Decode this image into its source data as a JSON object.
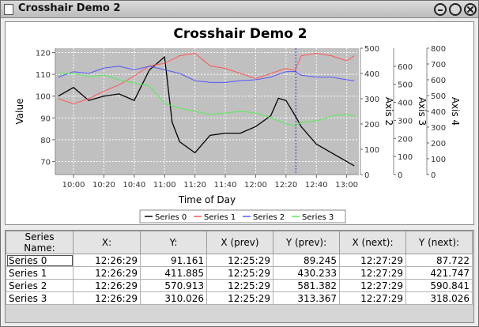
{
  "window": {
    "title": "Crosshair Demo 2"
  },
  "chart_data": {
    "type": "line",
    "title": "Crosshair Demo 2",
    "xlabel": "Time of Day",
    "ylabel": "Value",
    "x_ticks": [
      "10:00",
      "10:20",
      "10:40",
      "11:00",
      "11:20",
      "11:40",
      "12:00",
      "12:20",
      "12:40",
      "13:00"
    ],
    "x_start": "09:48",
    "x_end": "13:08",
    "crosshair_x": "12:26:29",
    "grid": true,
    "legend_position": "bottom",
    "axes": [
      {
        "name": "Value",
        "side": "left",
        "range": [
          64,
          122
        ],
        "ticks": [
          70,
          80,
          90,
          100,
          110,
          120
        ]
      },
      {
        "name": "Axis 2",
        "side": "right",
        "range": [
          0,
          500
        ],
        "ticks": [
          0,
          100,
          200,
          300,
          400,
          500
        ]
      },
      {
        "name": "Axis 3",
        "side": "right",
        "range": [
          0,
          700
        ],
        "ticks": [
          0,
          100,
          200,
          300,
          400,
          500,
          600
        ]
      },
      {
        "name": "Axis 4",
        "side": "right",
        "range": [
          0,
          800
        ],
        "ticks": [
          0,
          100,
          200,
          300,
          400,
          500,
          600,
          700,
          800
        ]
      }
    ],
    "series": [
      {
        "name": "Series 0",
        "axis": 0,
        "color": "#000000",
        "x": [
          "09:50",
          "10:00",
          "10:10",
          "10:20",
          "10:30",
          "10:40",
          "10:50",
          "11:00",
          "11:05",
          "11:10",
          "11:20",
          "11:30",
          "11:40",
          "11:50",
          "12:00",
          "12:10",
          "12:15",
          "12:20",
          "12:26",
          "12:30",
          "12:40",
          "12:50",
          "13:00",
          "13:05"
        ],
        "y": [
          100,
          104,
          98,
          100,
          101,
          98,
          112,
          118,
          88,
          79,
          74,
          82,
          83,
          83,
          86,
          91,
          99,
          98,
          91,
          86,
          78,
          74,
          70,
          68
        ]
      },
      {
        "name": "Series 1",
        "axis": 1,
        "color": "#ff5555",
        "x": [
          "09:50",
          "10:00",
          "10:10",
          "10:20",
          "10:30",
          "10:40",
          "10:50",
          "11:00",
          "11:10",
          "11:20",
          "11:30",
          "11:40",
          "11:50",
          "12:00",
          "12:10",
          "12:20",
          "12:26",
          "12:30",
          "12:40",
          "12:50",
          "13:00",
          "13:05"
        ],
        "y": [
          300,
          280,
          300,
          330,
          355,
          390,
          430,
          440,
          470,
          480,
          430,
          420,
          400,
          380,
          400,
          420,
          412,
          470,
          480,
          470,
          450,
          470
        ]
      },
      {
        "name": "Series 2",
        "axis": 2,
        "color": "#5555ff",
        "x": [
          "09:50",
          "10:00",
          "10:10",
          "10:20",
          "10:30",
          "10:40",
          "10:50",
          "11:00",
          "11:10",
          "11:20",
          "11:30",
          "11:40",
          "11:50",
          "12:00",
          "12:10",
          "12:20",
          "12:26",
          "12:30",
          "12:40",
          "12:50",
          "13:00",
          "13:05"
        ],
        "y": [
          540,
          570,
          560,
          590,
          600,
          580,
          600,
          580,
          560,
          520,
          510,
          510,
          520,
          525,
          540,
          570,
          571,
          550,
          540,
          540,
          525,
          520
        ]
      },
      {
        "name": "Series 3",
        "axis": 3,
        "color": "#55ee55",
        "x": [
          "09:50",
          "10:00",
          "10:10",
          "10:20",
          "10:30",
          "10:40",
          "10:50",
          "11:00",
          "11:10",
          "11:20",
          "11:30",
          "11:40",
          "11:50",
          "12:00",
          "12:10",
          "12:20",
          "12:26",
          "12:30",
          "12:40",
          "12:50",
          "13:00",
          "13:05"
        ],
        "y": [
          640,
          640,
          620,
          630,
          600,
          580,
          560,
          450,
          420,
          400,
          380,
          390,
          400,
          390,
          360,
          320,
          310,
          330,
          340,
          370,
          380,
          370
        ]
      }
    ]
  },
  "table": {
    "headers": [
      "Series Name:",
      "X:",
      "Y:",
      "X (prev)",
      "Y (prev):",
      "X (next):",
      "Y (next):"
    ],
    "rows": [
      [
        "Series 0",
        "12:26:29",
        "91.161",
        "12:25:29",
        "89.245",
        "12:27:29",
        "87.722"
      ],
      [
        "Series 1",
        "12:26:29",
        "411.885",
        "12:25:29",
        "430.233",
        "12:27:29",
        "421.747"
      ],
      [
        "Series 2",
        "12:26:29",
        "570.913",
        "12:25:29",
        "581.382",
        "12:27:29",
        "590.841"
      ],
      [
        "Series 3",
        "12:26:29",
        "310.026",
        "12:25:29",
        "313.367",
        "12:27:29",
        "318.026"
      ]
    ]
  }
}
